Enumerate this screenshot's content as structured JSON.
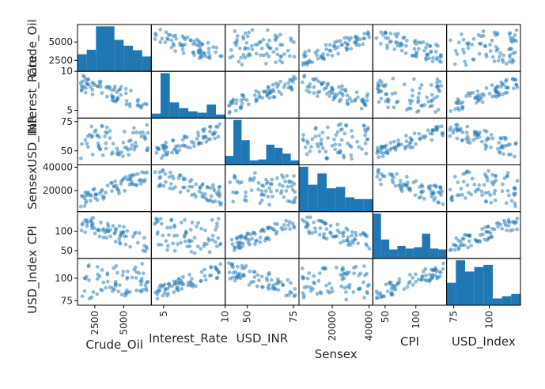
{
  "chart_data": {
    "type": "scatter-matrix",
    "title": "",
    "variables": [
      "Crude_Oil",
      "Interest_Rate",
      "USD_INR",
      "Sensex",
      "CPI",
      "USD_Index"
    ],
    "ranges": {
      "Crude_Oil": [
        1000,
        7400
      ],
      "Interest_Rate": [
        4.0,
        10.0
      ],
      "USD_INR": [
        38,
        78
      ],
      "Sensex": [
        2000,
        42000
      ],
      "CPI": [
        30,
        150
      ],
      "USD_Index": [
        70,
        122
      ]
    },
    "ticks": {
      "Crude_Oil": {
        "x": [
          "2500",
          "5000"
        ],
        "xv": [
          2500,
          5000
        ],
        "y": [
          "5000",
          "2500"
        ],
        "yv": [
          5000,
          2500
        ]
      },
      "Interest_Rate": {
        "x": [
          "5",
          "10"
        ],
        "xv": [
          5,
          10
        ],
        "y": [
          "10",
          "5"
        ],
        "yv": [
          10,
          5
        ]
      },
      "USD_INR": {
        "x": [
          "50",
          "75"
        ],
        "xv": [
          50,
          75
        ],
        "y": [
          "75",
          "50"
        ],
        "yv": [
          75,
          50
        ]
      },
      "Sensex": {
        "x": [
          "20000",
          "40000"
        ],
        "xv": [
          20000,
          40000
        ],
        "y": [
          "40000",
          "20000"
        ],
        "yv": [
          40000,
          20000
        ]
      },
      "CPI": {
        "x": [
          "50",
          "100"
        ],
        "xv": [
          50,
          100
        ],
        "y": [
          "100",
          "50"
        ],
        "yv": [
          100,
          50
        ]
      },
      "USD_Index": {
        "x": [
          "75",
          "100"
        ],
        "xv": [
          75,
          100
        ],
        "y": [
          "100",
          "75"
        ],
        "yv": [
          100,
          75
        ]
      }
    },
    "histograms": {
      "Crude_Oil": [
        0.38,
        0.48,
        1.0,
        1.0,
        0.7,
        0.57,
        0.47,
        0.33
      ],
      "Interest_Rate": [
        0.1,
        1.0,
        0.35,
        0.22,
        0.15,
        0.12,
        0.3,
        0.08
      ],
      "USD_INR": [
        0.2,
        1.0,
        0.55,
        0.1,
        0.12,
        0.45,
        0.38,
        0.25,
        0.1
      ],
      "Sensex": [
        1.0,
        0.6,
        0.85,
        0.52,
        0.55,
        0.32,
        0.28,
        0.28
      ],
      "CPI": [
        1.0,
        0.42,
        0.2,
        0.28,
        0.22,
        0.25,
        0.55,
        0.22,
        0.2
      ],
      "USD_Index": [
        0.5,
        1.0,
        0.75,
        0.85,
        0.9,
        0.15,
        0.2,
        0.25
      ]
    },
    "grid": false,
    "marker_color": "#1f77b4",
    "bar_color": "#1f77b4",
    "marker_alpha": 0.5
  }
}
